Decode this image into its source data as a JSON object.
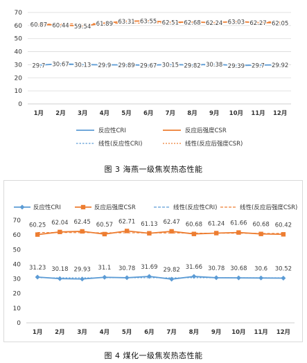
{
  "captions": {
    "chart1": "图 3   海燕一级焦炭热态性能",
    "chart2": "图 4   煤化一级焦炭热态性能"
  },
  "chart_data": [
    {
      "type": "line",
      "categories": [
        "1月",
        "2月",
        "3月",
        "4月",
        "5月",
        "6月",
        "7月",
        "8月",
        "9月",
        "10月",
        "11月",
        "12月"
      ],
      "ylim": [
        0,
        70
      ],
      "yticks": [
        0,
        10,
        20,
        30,
        40,
        50,
        60,
        70
      ],
      "grid": true,
      "legend_position": "bottom",
      "series": [
        {
          "name": "反应性CRI",
          "color": "#5B9BD5",
          "values": [
            29.7,
            30.67,
            30.13,
            29.9,
            29.89,
            29.67,
            30.15,
            29.82,
            30.38,
            29.39,
            29.7,
            29.92
          ]
        },
        {
          "name": "反应后强度CSR",
          "color": "#ED7D31",
          "values": [
            60.87,
            60.44,
            59.54,
            61.89,
            63.31,
            63.55,
            62.51,
            62.68,
            62.24,
            63.03,
            62.27,
            62.05
          ]
        }
      ],
      "trendlines": [
        {
          "name": "线性(反应性CRI)",
          "color": "#5B9BD5"
        },
        {
          "name": "线性(反应后强度CSR)",
          "color": "#ED7D31"
        }
      ]
    },
    {
      "type": "line",
      "categories": [
        "1月",
        "2月",
        "3月",
        "4月",
        "5月",
        "6月",
        "7月",
        "8月",
        "9月",
        "10月",
        "11月",
        "12月"
      ],
      "ylim": [
        0,
        70
      ],
      "yticks": [
        0,
        10,
        20,
        30,
        40,
        50,
        60,
        70
      ],
      "grid": false,
      "legend_position": "top",
      "series": [
        {
          "name": "反应性CRI",
          "color": "#5B9BD5",
          "marker": "diamond",
          "values": [
            31.23,
            30.18,
            29.93,
            31.1,
            30.78,
            31.69,
            29.82,
            31.66,
            30.78,
            30.68,
            30.6,
            30.52
          ]
        },
        {
          "name": "反应后强度CSR",
          "color": "#ED7D31",
          "marker": "square",
          "values": [
            60.25,
            62.04,
            62.45,
            60.57,
            62.71,
            61.13,
            62.47,
            60.68,
            61.24,
            61.66,
            60.68,
            60.42
          ]
        }
      ],
      "trendlines": [
        {
          "name": "线性(反应性CRI)",
          "color": "#5B9BD5"
        },
        {
          "name": "线性(反应后强度CSR)",
          "color": "#ED7D31"
        }
      ]
    }
  ]
}
